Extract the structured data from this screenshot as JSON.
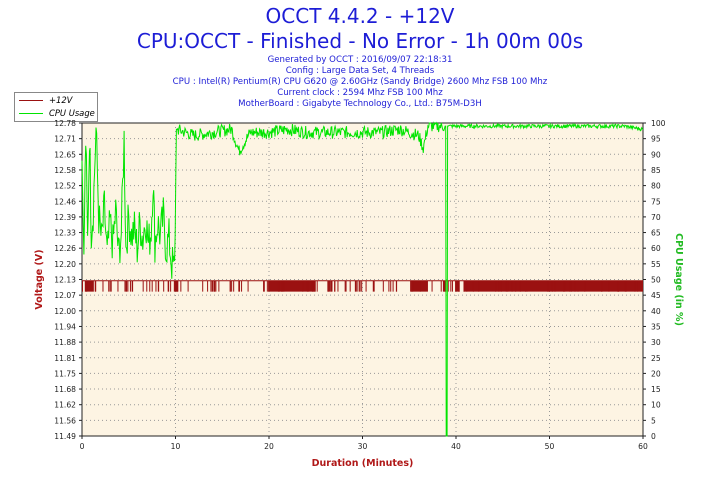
{
  "header": {
    "title": "OCCT 4.4.2 - +12V",
    "subtitle": "CPU:OCCT - Finished - No Error - 1h 00m 00s",
    "lines": [
      "Generated by OCCT : 2016/09/07 22:18:31",
      "Config : Large Data Set, 4 Threads",
      "CPU : Intel(R) Pentium(R) CPU G620 @ 2.60GHz (Sandy Bridge) 2600 Mhz FSB 100 Mhz",
      "Current clock : 2594 Mhz FSB 100 Mhz",
      "MotherBoard : Gigabyte Technology Co., Ltd.: B75M-D3H"
    ]
  },
  "legend": {
    "items": [
      "+12V",
      "CPU Usage"
    ]
  },
  "colors": {
    "voltage": "#9b1111",
    "cpu": "#00e400",
    "bg": "#fdf4e3",
    "title": "#1d1dd6",
    "axis_label": "#b01818",
    "right_axis_label": "#22bb22"
  },
  "chart_data": {
    "type": "line",
    "title": "OCCT 4.4.2 - +12V",
    "xlabel": "Duration (Minutes)",
    "ylabel": "Voltage (V)",
    "y2label": "CPU Usage (in %)",
    "xlim": [
      0,
      60
    ],
    "ylim": [
      11.49,
      12.78
    ],
    "y2lim": [
      0,
      100
    ],
    "x_ticks": [
      0,
      10,
      20,
      30,
      40,
      50,
      60
    ],
    "y_ticks": [
      "12.78",
      "12.71",
      "12.65",
      "12.58",
      "12.52",
      "12.46",
      "12.39",
      "12.33",
      "12.26",
      "12.20",
      "12.13",
      "12.07",
      "12.00",
      "11.94",
      "11.88",
      "11.81",
      "11.75",
      "11.68",
      "11.62",
      "11.56",
      "11.49"
    ],
    "y2_ticks": [
      0,
      5,
      10,
      15,
      20,
      25,
      30,
      35,
      40,
      45,
      50,
      55,
      60,
      65,
      70,
      75,
      80,
      85,
      90,
      95,
      100
    ],
    "grid": true,
    "legend_position": "top-left",
    "series": [
      {
        "name": "+12V",
        "color": "#9b1111",
        "baseline": 12.13,
        "dip_low": 12.085,
        "dense_ranges": [
          [
            19.9,
            25.0
          ],
          [
            35.2,
            37.0
          ],
          [
            40.8,
            60.0
          ]
        ],
        "dense_start_marks": [
          [
            0.3,
            1.2
          ],
          [
            9.9,
            10.3
          ],
          [
            31.1,
            31.3
          ],
          [
            38.6,
            39.0
          ],
          [
            39.9,
            40.4
          ]
        ],
        "sparse_range": [
          0,
          60
        ]
      },
      {
        "name": "CPU Usage",
        "color": "#00e400",
        "points": [
          [
            0,
            88
          ],
          [
            0.2,
            58
          ],
          [
            0.4,
            95
          ],
          [
            0.6,
            62
          ],
          [
            0.8,
            97
          ],
          [
            1.0,
            66
          ],
          [
            1.2,
            72
          ],
          [
            1.5,
            98
          ],
          [
            1.8,
            70
          ],
          [
            2.1,
            62
          ],
          [
            2.4,
            73
          ],
          [
            2.7,
            57
          ],
          [
            3.0,
            68
          ],
          [
            3.3,
            61
          ],
          [
            3.6,
            72
          ],
          [
            3.9,
            58
          ],
          [
            4.2,
            65
          ],
          [
            4.5,
            95
          ],
          [
            4.7,
            60
          ],
          [
            5.0,
            70
          ],
          [
            5.3,
            64
          ],
          [
            5.6,
            66
          ],
          [
            5.9,
            60
          ],
          [
            6.2,
            68
          ],
          [
            6.5,
            63
          ],
          [
            6.8,
            70
          ],
          [
            7.1,
            61
          ],
          [
            7.4,
            66
          ],
          [
            7.6,
            82
          ],
          [
            7.8,
            62
          ],
          [
            8.1,
            68
          ],
          [
            8.4,
            64
          ],
          [
            8.7,
            70
          ],
          [
            9.0,
            60
          ],
          [
            9.3,
            63
          ],
          [
            9.6,
            55
          ],
          [
            9.9,
            53
          ],
          [
            10.1,
            98
          ],
          [
            12,
            96
          ],
          [
            14,
            97
          ],
          [
            16,
            98
          ],
          [
            16.8,
            91
          ],
          [
            18,
            97
          ],
          [
            20,
            97
          ],
          [
            22,
            98
          ],
          [
            24,
            97
          ],
          [
            26,
            97
          ],
          [
            28,
            97
          ],
          [
            30,
            97
          ],
          [
            32,
            97
          ],
          [
            34,
            98
          ],
          [
            36,
            96
          ],
          [
            36.5,
            92
          ],
          [
            37,
            99
          ],
          [
            38,
            99
          ],
          [
            38.9,
            99
          ],
          [
            38.95,
            0
          ],
          [
            39.05,
            0
          ],
          [
            39.1,
            99
          ],
          [
            42,
            99
          ],
          [
            46,
            99
          ],
          [
            50,
            99
          ],
          [
            54,
            99
          ],
          [
            58,
            99
          ],
          [
            60,
            98
          ]
        ]
      }
    ]
  }
}
